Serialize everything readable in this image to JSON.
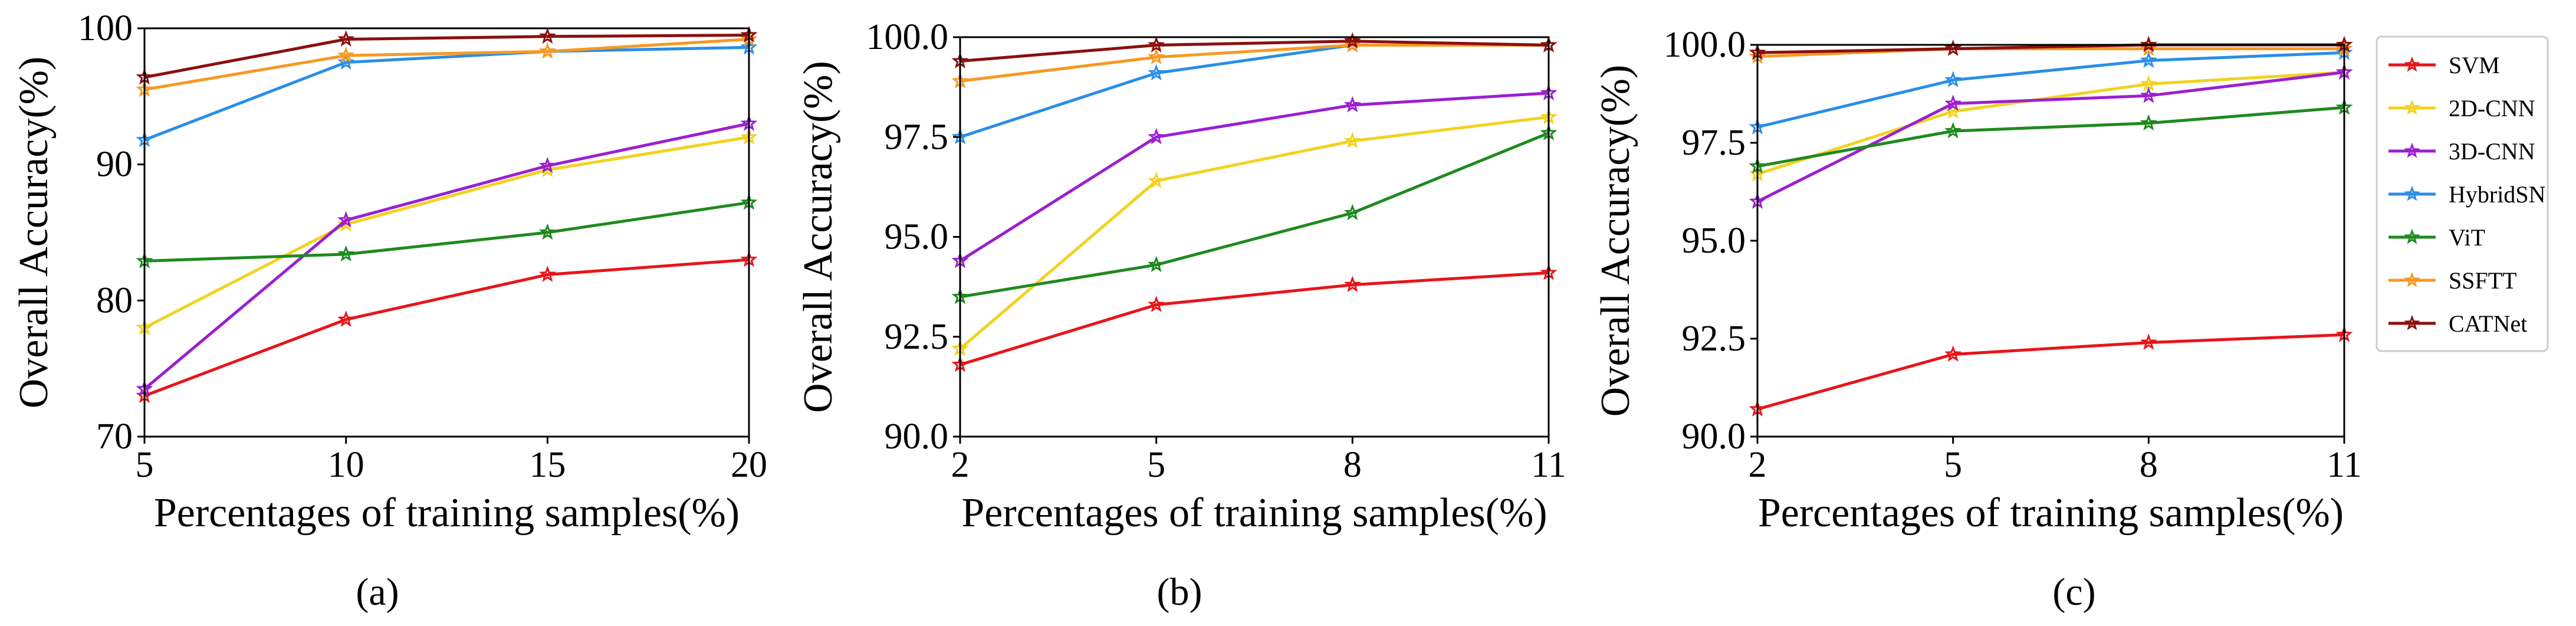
{
  "legend": [
    {
      "name": "SVM",
      "color": "#e8141a"
    },
    {
      "name": "2D-CNN",
      "color": "#f2d21e"
    },
    {
      "name": "3D-CNN",
      "color": "#9b1fd1"
    },
    {
      "name": "HybridSN",
      "color": "#2a8ee6"
    },
    {
      "name": "ViT",
      "color": "#1e8a1e"
    },
    {
      "name": "SSFTT",
      "color": "#f59a23"
    },
    {
      "name": "CATNet",
      "color": "#8b0f0f"
    }
  ],
  "chart_data": [
    {
      "type": "line",
      "caption": "(a)",
      "xlabel": "Percentages of training samples(%)",
      "ylabel": "Overall Accuracy(%)",
      "x": [
        5,
        10,
        15,
        20
      ],
      "xticks": [
        "5",
        "10",
        "15",
        "20"
      ],
      "yticks": [
        "70",
        "80",
        "90",
        "100"
      ],
      "xlim": [
        5,
        20
      ],
      "ylim": [
        70,
        100
      ],
      "series": [
        {
          "name": "SVM",
          "values": [
            73.0,
            78.6,
            81.9,
            83.0
          ]
        },
        {
          "name": "2D-CNN",
          "values": [
            78.0,
            85.6,
            89.6,
            92.0
          ]
        },
        {
          "name": "3D-CNN",
          "values": [
            73.5,
            85.9,
            89.9,
            93.0
          ]
        },
        {
          "name": "HybridSN",
          "values": [
            91.8,
            97.5,
            98.3,
            98.6
          ]
        },
        {
          "name": "ViT",
          "values": [
            82.9,
            83.4,
            85.0,
            87.2
          ]
        },
        {
          "name": "SSFTT",
          "values": [
            95.5,
            98.0,
            98.3,
            99.2
          ]
        },
        {
          "name": "CATNet",
          "values": [
            96.4,
            99.2,
            99.4,
            99.5
          ]
        }
      ]
    },
    {
      "type": "line",
      "caption": "(b)",
      "xlabel": "Percentages of training samples(%)",
      "ylabel": "Overall Accuracy(%)",
      "x": [
        2,
        5,
        8,
        11
      ],
      "xticks": [
        "2",
        "5",
        "8",
        "11"
      ],
      "yticks": [
        "90.0",
        "92.5",
        "95.0",
        "97.5",
        "100.0"
      ],
      "xlim": [
        2,
        11
      ],
      "ylim": [
        90,
        100
      ],
      "series": [
        {
          "name": "SVM",
          "values": [
            91.8,
            93.3,
            93.8,
            94.1
          ]
        },
        {
          "name": "2D-CNN",
          "values": [
            92.2,
            96.4,
            97.4,
            98.0
          ]
        },
        {
          "name": "3D-CNN",
          "values": [
            94.4,
            97.5,
            98.3,
            98.6
          ]
        },
        {
          "name": "HybridSN",
          "values": [
            97.5,
            99.1,
            99.8,
            99.8
          ]
        },
        {
          "name": "ViT",
          "values": [
            93.5,
            94.3,
            95.6,
            97.6
          ]
        },
        {
          "name": "SSFTT",
          "values": [
            98.9,
            99.5,
            99.8,
            99.8
          ]
        },
        {
          "name": "CATNet",
          "values": [
            99.4,
            99.8,
            99.9,
            99.8
          ]
        }
      ]
    },
    {
      "type": "line",
      "caption": "(c)",
      "xlabel": "Percentages of training samples(%)",
      "ylabel": "Overall Accuracy(%)",
      "x": [
        2,
        5,
        8,
        11
      ],
      "xticks": [
        "2",
        "5",
        "8",
        "11"
      ],
      "yticks": [
        "90.0",
        "92.5",
        "95.0",
        "97.5",
        "100.0"
      ],
      "xlim": [
        2,
        11
      ],
      "ylim": [
        90,
        100
      ],
      "series": [
        {
          "name": "SVM",
          "values": [
            90.7,
            92.1,
            92.4,
            92.6
          ]
        },
        {
          "name": "2D-CNN",
          "values": [
            96.7,
            98.3,
            99.0,
            99.3
          ]
        },
        {
          "name": "3D-CNN",
          "values": [
            96.0,
            98.5,
            98.7,
            99.3
          ]
        },
        {
          "name": "HybridSN",
          "values": [
            97.9,
            99.1,
            99.6,
            99.8
          ]
        },
        {
          "name": "ViT",
          "values": [
            96.9,
            97.8,
            98.0,
            98.4
          ]
        },
        {
          "name": "SSFTT",
          "values": [
            99.7,
            99.9,
            99.9,
            99.9
          ]
        },
        {
          "name": "CATNet",
          "values": [
            99.8,
            99.9,
            100.0,
            100.0
          ]
        }
      ]
    }
  ]
}
